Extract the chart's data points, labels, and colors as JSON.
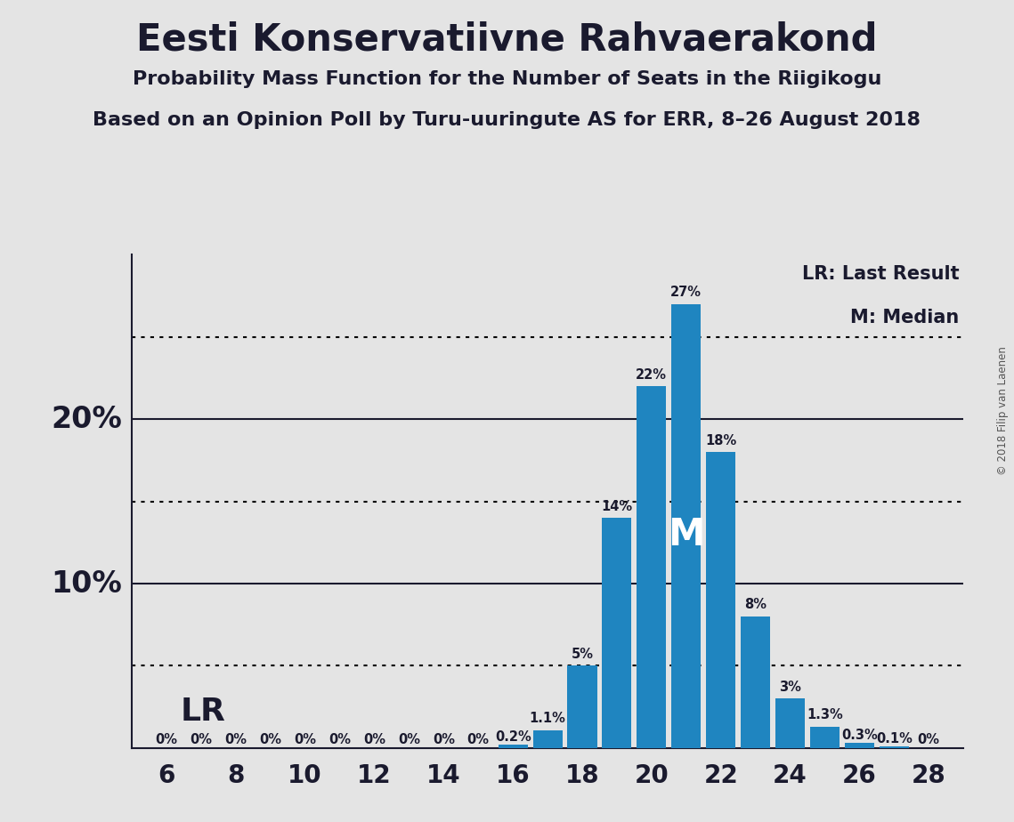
{
  "title": "Eesti Konservatiivne Rahvaerakond",
  "subtitle1": "Probability Mass Function for the Number of Seats in the Riigikogu",
  "subtitle2": "Based on an Opinion Poll by Turu-uuringute AS for ERR, 8–26 August 2018",
  "copyright": "© 2018 Filip van Laenen",
  "seats": [
    6,
    7,
    8,
    9,
    10,
    11,
    12,
    13,
    14,
    15,
    16,
    17,
    18,
    19,
    20,
    21,
    22,
    23,
    24,
    25,
    26,
    27,
    28
  ],
  "probabilities": [
    0.0,
    0.0,
    0.0,
    0.0,
    0.0,
    0.0,
    0.0,
    0.0,
    0.0,
    0.0,
    0.2,
    1.1,
    5.0,
    14.0,
    22.0,
    27.0,
    18.0,
    8.0,
    3.0,
    1.3,
    0.3,
    0.1,
    0.0
  ],
  "labels": [
    "0%",
    "0%",
    "0%",
    "0%",
    "0%",
    "0%",
    "0%",
    "0%",
    "0%",
    "0%",
    "0.2%",
    "1.1%",
    "5%",
    "14%",
    "22%",
    "27%",
    "18%",
    "8%",
    "3%",
    "1.3%",
    "0.3%",
    "0.1%",
    "0%"
  ],
  "bar_color": "#1f85c0",
  "background_color": "#e4e4e4",
  "plot_bg_color": "#e4e4e4",
  "median_seat": 21,
  "dotted_lines": [
    5.0,
    15.0,
    25.0
  ],
  "solid_lines": [
    10.0,
    20.0
  ],
  "ylim_max": 30,
  "xtick_labels": [
    "6",
    "8",
    "10",
    "12",
    "14",
    "16",
    "18",
    "20",
    "22",
    "24",
    "26",
    "28"
  ],
  "xticks": [
    6,
    8,
    10,
    12,
    14,
    16,
    18,
    20,
    22,
    24,
    26,
    28
  ],
  "ylabel_10": "10%",
  "ylabel_20": "20%",
  "text_color": "#1a1a2e",
  "lr_label": "LR",
  "lr_legend": "LR: Last Result",
  "m_legend": "M: Median"
}
